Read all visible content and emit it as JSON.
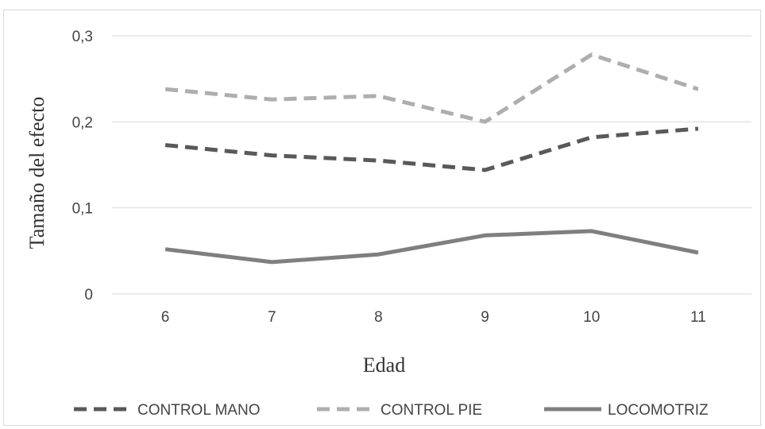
{
  "chart_data": {
    "type": "line",
    "title": "",
    "xlabel": "Edad",
    "ylabel": "Tamaño del efecto",
    "categories": [
      "6",
      "7",
      "8",
      "9",
      "10",
      "11"
    ],
    "y_ticks": [
      "0",
      "0,1",
      "0,2",
      "0,3"
    ],
    "y_tick_values": [
      0,
      0.1,
      0.2,
      0.3
    ],
    "ylim": [
      0,
      0.3
    ],
    "grid": "horizontal",
    "legend_position": "bottom",
    "series": [
      {
        "name": "CONTROL MANO",
        "values": [
          0.173,
          0.161,
          0.155,
          0.144,
          0.182,
          0.192
        ],
        "color": "#595959",
        "style": "dashed"
      },
      {
        "name": "CONTROL PIE",
        "values": [
          0.238,
          0.226,
          0.23,
          0.2,
          0.278,
          0.238
        ],
        "color": "#aeaeae",
        "style": "dashed"
      },
      {
        "name": "LOCOMOTRIZ",
        "values": [
          0.052,
          0.037,
          0.046,
          0.068,
          0.073,
          0.048
        ],
        "color": "#7f7f7f",
        "style": "solid"
      }
    ]
  }
}
